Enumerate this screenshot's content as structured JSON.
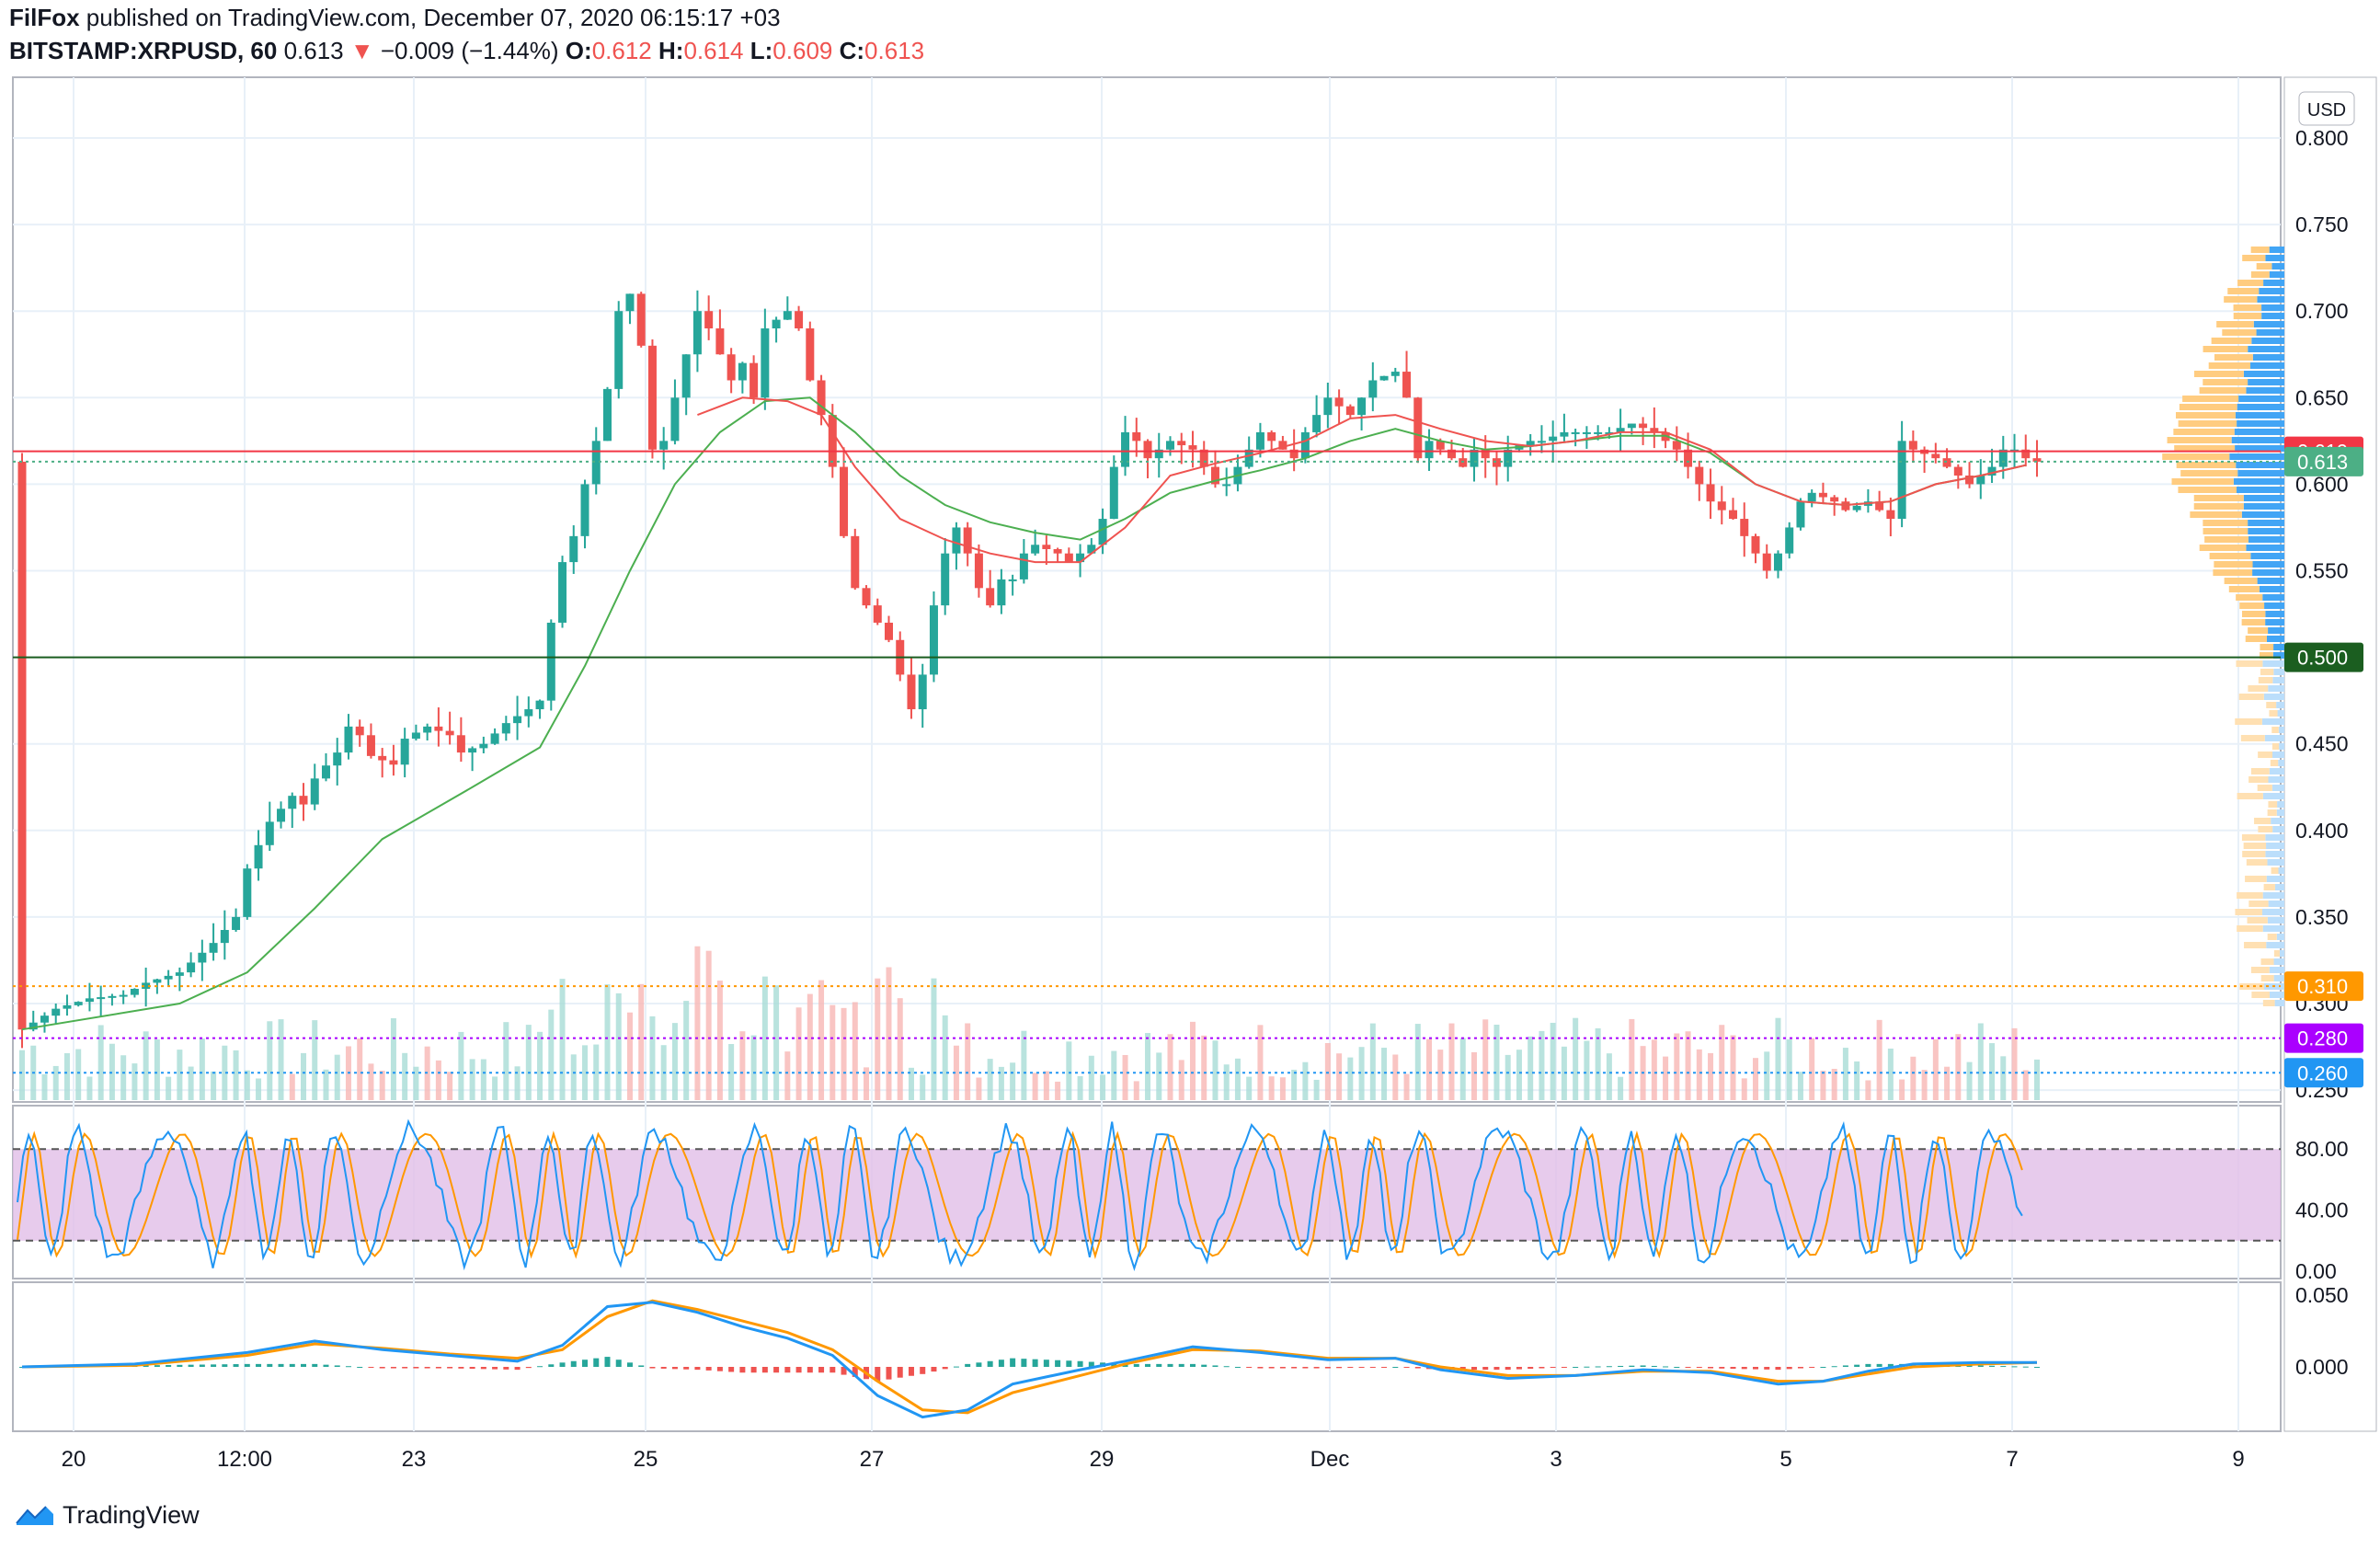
{
  "header": {
    "author": "FilFox",
    "published_text": "published on TradingView.com, December 07, 2020 06:15:17 +03",
    "symbol": "BITSTAMP:XRPUSD, 60",
    "last": "0.613",
    "change_arrow": "▼",
    "change": "−0.009 (−1.44%)",
    "o_label": "O:",
    "o": "0.612",
    "h_label": "H:",
    "h": "0.614",
    "l_label": "L:",
    "l": "0.609",
    "c_label": "C:",
    "c": "0.613"
  },
  "brand": {
    "icon": "tradingview-logo-icon",
    "name": "TradingView"
  },
  "colors": {
    "up": "#26a69a",
    "down": "#ef5350",
    "ma": "#4caf50",
    "ema": "#ef5350",
    "stoch_bg": "#e1bee7",
    "k": "#2196f3",
    "d": "#ff9800"
  },
  "chart_data": [
    {
      "type": "candlestick",
      "currency": "USD",
      "yticks": [
        "0.800",
        "0.750",
        "0.700",
        "0.650",
        "0.600",
        "0.550",
        "0.500",
        "0.450",
        "0.400",
        "0.350",
        "0.300",
        "0.250"
      ],
      "ylim": [
        0.24,
        0.82
      ],
      "xticks": [
        "20",
        "12:00",
        "23",
        "25",
        "27",
        "29",
        "Dec",
        "3",
        "5",
        "7",
        "9"
      ],
      "price_labels": [
        {
          "value": "0.619",
          "color": "#f23645",
          "line": "solid"
        },
        {
          "value": "0.613",
          "color": "#4caf85",
          "line": "dotted"
        },
        {
          "value": "0.500",
          "color": "#1b5e20",
          "line": "solid"
        },
        {
          "value": "0.310",
          "color": "#ff9800",
          "line": "dotted"
        },
        {
          "value": "0.280",
          "color": "#aa00ff",
          "line": "dotted"
        },
        {
          "value": "0.260",
          "color": "#2196f3",
          "line": "dotted"
        }
      ],
      "close_path": [
        [
          0,
          0.285
        ],
        [
          3,
          0.297
        ],
        [
          6,
          0.303
        ],
        [
          9,
          0.305
        ],
        [
          11,
          0.312
        ],
        [
          14,
          0.318
        ],
        [
          17,
          0.335
        ],
        [
          19,
          0.35
        ],
        [
          20,
          0.378
        ],
        [
          22,
          0.405
        ],
        [
          24,
          0.42
        ],
        [
          25,
          0.415
        ],
        [
          26,
          0.43
        ],
        [
          28,
          0.445
        ],
        [
          29,
          0.46
        ],
        [
          30,
          0.455
        ],
        [
          31,
          0.443
        ],
        [
          33,
          0.438
        ],
        [
          34,
          0.453
        ],
        [
          36,
          0.46
        ],
        [
          38,
          0.455
        ],
        [
          39,
          0.445
        ],
        [
          41,
          0.45
        ],
        [
          43,
          0.462
        ],
        [
          45,
          0.47
        ],
        [
          46,
          0.475
        ],
        [
          47,
          0.52
        ],
        [
          48,
          0.555
        ],
        [
          49,
          0.57
        ],
        [
          50,
          0.6
        ],
        [
          51,
          0.625
        ],
        [
          52,
          0.655
        ],
        [
          53,
          0.7
        ],
        [
          54,
          0.71
        ],
        [
          55,
          0.68
        ],
        [
          56,
          0.62
        ],
        [
          57,
          0.625
        ],
        [
          58,
          0.65
        ],
        [
          60,
          0.7
        ],
        [
          61,
          0.69
        ],
        [
          63,
          0.66
        ],
        [
          64,
          0.67
        ],
        [
          65,
          0.65
        ],
        [
          66,
          0.69
        ],
        [
          68,
          0.7
        ],
        [
          69,
          0.69
        ],
        [
          70,
          0.66
        ],
        [
          71,
          0.64
        ],
        [
          72,
          0.61
        ],
        [
          73,
          0.57
        ],
        [
          74,
          0.54
        ],
        [
          75,
          0.53
        ],
        [
          76,
          0.52
        ],
        [
          77,
          0.51
        ],
        [
          78,
          0.49
        ],
        [
          79,
          0.47
        ],
        [
          80,
          0.49
        ],
        [
          81,
          0.53
        ],
        [
          82,
          0.56
        ],
        [
          83,
          0.575
        ],
        [
          84,
          0.56
        ],
        [
          85,
          0.54
        ],
        [
          86,
          0.53
        ],
        [
          87,
          0.545
        ],
        [
          88,
          0.545
        ],
        [
          89,
          0.56
        ],
        [
          90,
          0.565
        ],
        [
          92,
          0.56
        ],
        [
          93,
          0.555
        ],
        [
          94,
          0.56
        ],
        [
          95,
          0.565
        ],
        [
          96,
          0.58
        ],
        [
          97,
          0.61
        ],
        [
          98,
          0.63
        ],
        [
          99,
          0.625
        ],
        [
          100,
          0.615
        ],
        [
          102,
          0.625
        ],
        [
          104,
          0.62
        ],
        [
          105,
          0.61
        ],
        [
          106,
          0.6
        ],
        [
          107,
          0.6
        ],
        [
          109,
          0.62
        ],
        [
          110,
          0.63
        ],
        [
          111,
          0.625
        ],
        [
          112,
          0.62
        ],
        [
          113,
          0.615
        ],
        [
          114,
          0.63
        ],
        [
          116,
          0.65
        ],
        [
          118,
          0.64
        ],
        [
          119,
          0.65
        ],
        [
          120,
          0.66
        ],
        [
          122,
          0.665
        ],
        [
          123,
          0.65
        ],
        [
          124,
          0.615
        ],
        [
          125,
          0.625
        ],
        [
          126,
          0.62
        ],
        [
          127,
          0.615
        ],
        [
          128,
          0.61
        ],
        [
          129,
          0.62
        ],
        [
          130,
          0.615
        ],
        [
          131,
          0.61
        ],
        [
          132,
          0.62
        ],
        [
          134,
          0.625
        ],
        [
          135,
          0.625
        ],
        [
          137,
          0.63
        ],
        [
          139,
          0.63
        ],
        [
          141,
          0.63
        ],
        [
          143,
          0.635
        ],
        [
          145,
          0.63
        ],
        [
          147,
          0.62
        ],
        [
          148,
          0.61
        ],
        [
          150,
          0.59
        ],
        [
          152,
          0.58
        ],
        [
          154,
          0.56
        ],
        [
          155,
          0.55
        ],
        [
          156,
          0.56
        ],
        [
          157,
          0.575
        ],
        [
          158,
          0.59
        ],
        [
          159,
          0.595
        ],
        [
          161,
          0.59
        ],
        [
          162,
          0.585
        ],
        [
          164,
          0.59
        ],
        [
          165,
          0.585
        ],
        [
          166,
          0.58
        ],
        [
          167,
          0.625
        ],
        [
          168,
          0.62
        ],
        [
          170,
          0.615
        ],
        [
          171,
          0.61
        ],
        [
          172,
          0.605
        ],
        [
          173,
          0.6
        ],
        [
          174,
          0.605
        ],
        [
          175,
          0.61
        ],
        [
          176,
          0.62
        ],
        [
          177,
          0.62
        ],
        [
          178,
          0.615
        ],
        [
          179,
          0.613
        ]
      ],
      "ma_path": [
        [
          0,
          0.285
        ],
        [
          14,
          0.3
        ],
        [
          20,
          0.318
        ],
        [
          26,
          0.355
        ],
        [
          32,
          0.395
        ],
        [
          40,
          0.425
        ],
        [
          46,
          0.448
        ],
        [
          50,
          0.495
        ],
        [
          54,
          0.55
        ],
        [
          58,
          0.6
        ],
        [
          62,
          0.63
        ],
        [
          66,
          0.648
        ],
        [
          70,
          0.65
        ],
        [
          74,
          0.63
        ],
        [
          78,
          0.605
        ],
        [
          82,
          0.588
        ],
        [
          86,
          0.578
        ],
        [
          90,
          0.572
        ],
        [
          94,
          0.568
        ],
        [
          98,
          0.58
        ],
        [
          102,
          0.595
        ],
        [
          106,
          0.602
        ],
        [
          110,
          0.608
        ],
        [
          114,
          0.615
        ],
        [
          118,
          0.625
        ],
        [
          122,
          0.632
        ],
        [
          126,
          0.625
        ],
        [
          130,
          0.62
        ],
        [
          134,
          0.622
        ],
        [
          138,
          0.625
        ],
        [
          142,
          0.628
        ],
        [
          146,
          0.628
        ],
        [
          150,
          0.618
        ],
        [
          154,
          0.6
        ],
        [
          158,
          0.59
        ],
        [
          162,
          0.588
        ],
        [
          166,
          0.59
        ],
        [
          170,
          0.6
        ],
        [
          174,
          0.605
        ],
        [
          178,
          0.611
        ]
      ],
      "ema_path": [
        [
          60,
          0.64
        ],
        [
          64,
          0.65
        ],
        [
          68,
          0.648
        ],
        [
          71,
          0.64
        ],
        [
          74,
          0.61
        ],
        [
          78,
          0.58
        ],
        [
          82,
          0.568
        ],
        [
          86,
          0.56
        ],
        [
          90,
          0.555
        ],
        [
          94,
          0.555
        ],
        [
          98,
          0.575
        ],
        [
          102,
          0.605
        ],
        [
          106,
          0.612
        ],
        [
          110,
          0.618
        ],
        [
          114,
          0.625
        ],
        [
          118,
          0.638
        ],
        [
          122,
          0.64
        ],
        [
          126,
          0.632
        ],
        [
          130,
          0.625
        ],
        [
          134,
          0.622
        ],
        [
          138,
          0.625
        ],
        [
          142,
          0.63
        ],
        [
          146,
          0.63
        ],
        [
          150,
          0.62
        ],
        [
          154,
          0.6
        ],
        [
          158,
          0.59
        ],
        [
          162,
          0.588
        ],
        [
          166,
          0.59
        ],
        [
          170,
          0.6
        ],
        [
          174,
          0.605
        ],
        [
          178,
          0.611
        ]
      ],
      "visible_range_volume_profile": "up/down bars at right edge"
    },
    {
      "type": "line",
      "name": "Stochastic",
      "yticks": [
        "80.00",
        "40.00",
        "0.00"
      ],
      "ylim": [
        0,
        100
      ],
      "bands": [
        20,
        80
      ]
    },
    {
      "type": "line",
      "name": "MACD",
      "yticks": [
        "0.050",
        "0.000"
      ],
      "ylim": [
        -0.04,
        0.055
      ],
      "macd_path": [
        [
          0,
          0.0
        ],
        [
          10,
          0.002
        ],
        [
          20,
          0.01
        ],
        [
          26,
          0.018
        ],
        [
          32,
          0.012
        ],
        [
          38,
          0.008
        ],
        [
          44,
          0.004
        ],
        [
          48,
          0.015
        ],
        [
          52,
          0.042
        ],
        [
          56,
          0.045
        ],
        [
          60,
          0.038
        ],
        [
          64,
          0.028
        ],
        [
          68,
          0.02
        ],
        [
          72,
          0.008
        ],
        [
          76,
          -0.02
        ],
        [
          80,
          -0.035
        ],
        [
          84,
          -0.03
        ],
        [
          88,
          -0.012
        ],
        [
          94,
          -0.002
        ],
        [
          98,
          0.004
        ],
        [
          104,
          0.014
        ],
        [
          110,
          0.01
        ],
        [
          116,
          0.005
        ],
        [
          122,
          0.006
        ],
        [
          126,
          -0.002
        ],
        [
          132,
          -0.008
        ],
        [
          138,
          -0.006
        ],
        [
          144,
          -0.002
        ],
        [
          150,
          -0.004
        ],
        [
          156,
          -0.012
        ],
        [
          160,
          -0.01
        ],
        [
          164,
          -0.003
        ],
        [
          168,
          0.002
        ],
        [
          174,
          0.003
        ],
        [
          179,
          0.003
        ]
      ],
      "signal_path": [
        [
          0,
          0.0
        ],
        [
          10,
          0.001
        ],
        [
          20,
          0.008
        ],
        [
          26,
          0.016
        ],
        [
          32,
          0.013
        ],
        [
          38,
          0.009
        ],
        [
          44,
          0.006
        ],
        [
          48,
          0.012
        ],
        [
          52,
          0.035
        ],
        [
          56,
          0.046
        ],
        [
          60,
          0.04
        ],
        [
          64,
          0.032
        ],
        [
          68,
          0.024
        ],
        [
          72,
          0.012
        ],
        [
          76,
          -0.01
        ],
        [
          80,
          -0.03
        ],
        [
          84,
          -0.032
        ],
        [
          88,
          -0.018
        ],
        [
          94,
          -0.006
        ],
        [
          98,
          0.002
        ],
        [
          104,
          0.012
        ],
        [
          110,
          0.011
        ],
        [
          116,
          0.006
        ],
        [
          122,
          0.006
        ],
        [
          126,
          0.0
        ],
        [
          132,
          -0.006
        ],
        [
          138,
          -0.006
        ],
        [
          144,
          -0.003
        ],
        [
          150,
          -0.003
        ],
        [
          156,
          -0.01
        ],
        [
          160,
          -0.01
        ],
        [
          164,
          -0.005
        ],
        [
          168,
          0.0
        ],
        [
          174,
          0.002
        ],
        [
          179,
          0.003
        ]
      ]
    }
  ]
}
